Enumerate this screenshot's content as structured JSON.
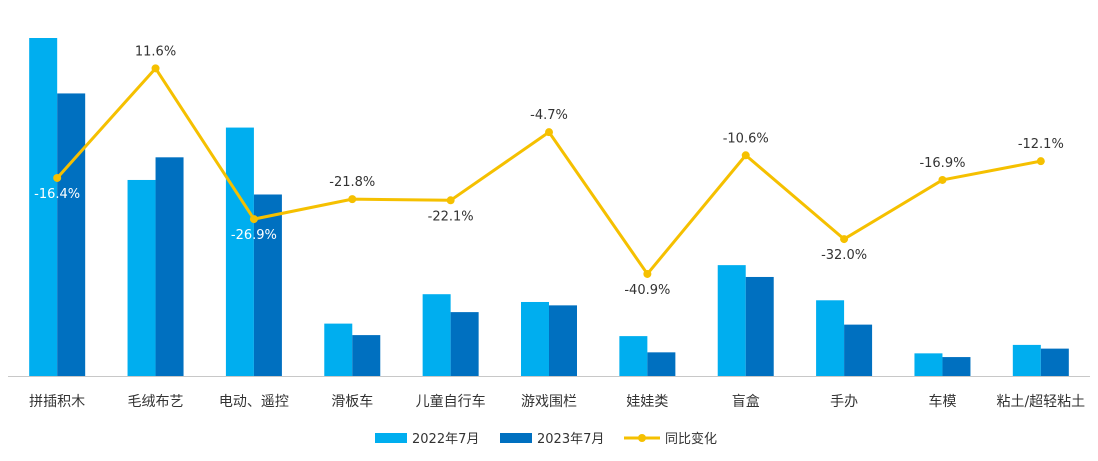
{
  "chart_data": {
    "type": "bar",
    "title": "",
    "xlabel": "",
    "ylabel": "",
    "categories": [
      "拼插积木",
      "毛绒布艺",
      "电动、遥控",
      "滑板车",
      "儿童自行车",
      "游戏围栏",
      "娃娃类",
      "盲盒",
      "手办",
      "车模",
      "粘土/超轻粘土"
    ],
    "series": [
      {
        "name": "2022年7月",
        "kind": "bar",
        "color": "#00aeef",
        "values": [
          100,
          58.0,
          73.5,
          15.5,
          24.2,
          21.9,
          11.8,
          32.8,
          22.4,
          6.7,
          9.2
        ]
      },
      {
        "name": "2023年7月",
        "kind": "bar",
        "color": "#0070c0",
        "values": [
          83.6,
          64.7,
          53.7,
          12.1,
          18.9,
          20.9,
          7.0,
          29.3,
          15.2,
          5.6,
          8.1
        ]
      },
      {
        "name": "同比变化",
        "kind": "line",
        "color": "#f5c000",
        "values": [
          -16.4,
          11.6,
          -26.9,
          -21.8,
          -22.1,
          -4.7,
          -40.9,
          -10.6,
          -32.0,
          -16.9,
          -12.1
        ],
        "labels": [
          "-16.4%",
          "11.6%",
          "-26.9%",
          "-21.8%",
          "-22.1%",
          "-4.7%",
          "-40.9%",
          "-10.6%",
          "-32.0%",
          "-16.9%",
          "-12.1%"
        ]
      }
    ],
    "bar_ylim": [
      0,
      100
    ],
    "line_ylim": [
      -45,
      15
    ],
    "grid": false,
    "legend": "bottom-center"
  }
}
